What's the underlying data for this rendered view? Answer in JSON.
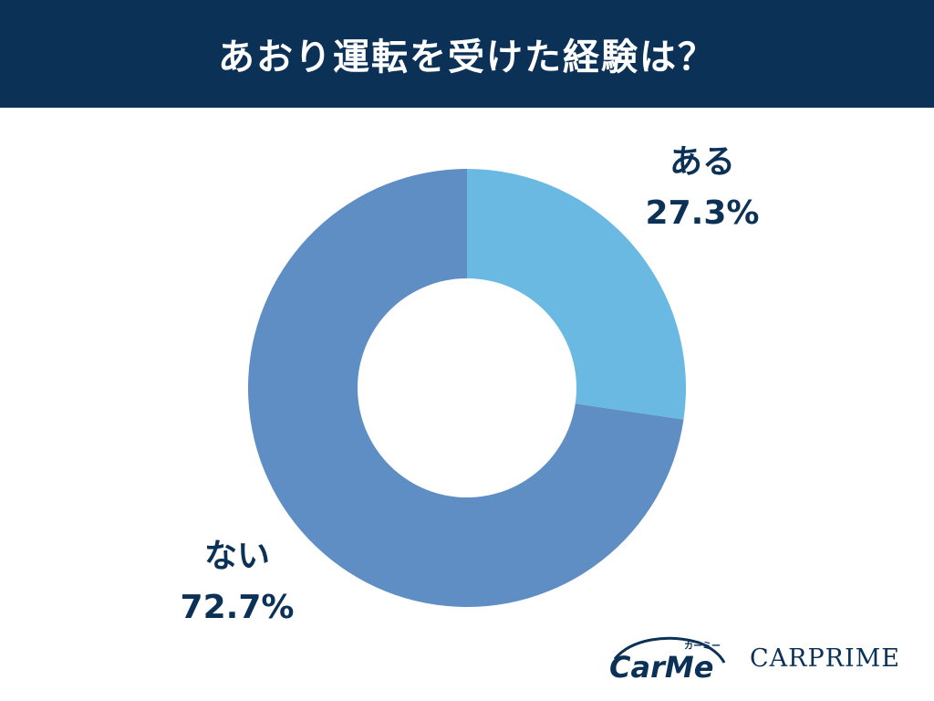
{
  "title": "あおり運転を受けた経験は？",
  "colors": {
    "header_bg": "#0b3157",
    "label_text": "#0b3157",
    "slice_aru": "#69b9e3",
    "slice_nai": "#5e8ec4"
  },
  "chart_data": {
    "type": "pie",
    "donut": true,
    "slices": [
      {
        "label": "ある",
        "value": 27.3,
        "value_label": "27.3%",
        "color": "#69b9e3"
      },
      {
        "label": "ない",
        "value": 72.7,
        "value_label": "72.7%",
        "color": "#5e8ec4"
      }
    ]
  },
  "logos": {
    "carme_wordmark": "CarMe",
    "carme_kana": "カーミー",
    "carprime": "CARPRIME"
  }
}
